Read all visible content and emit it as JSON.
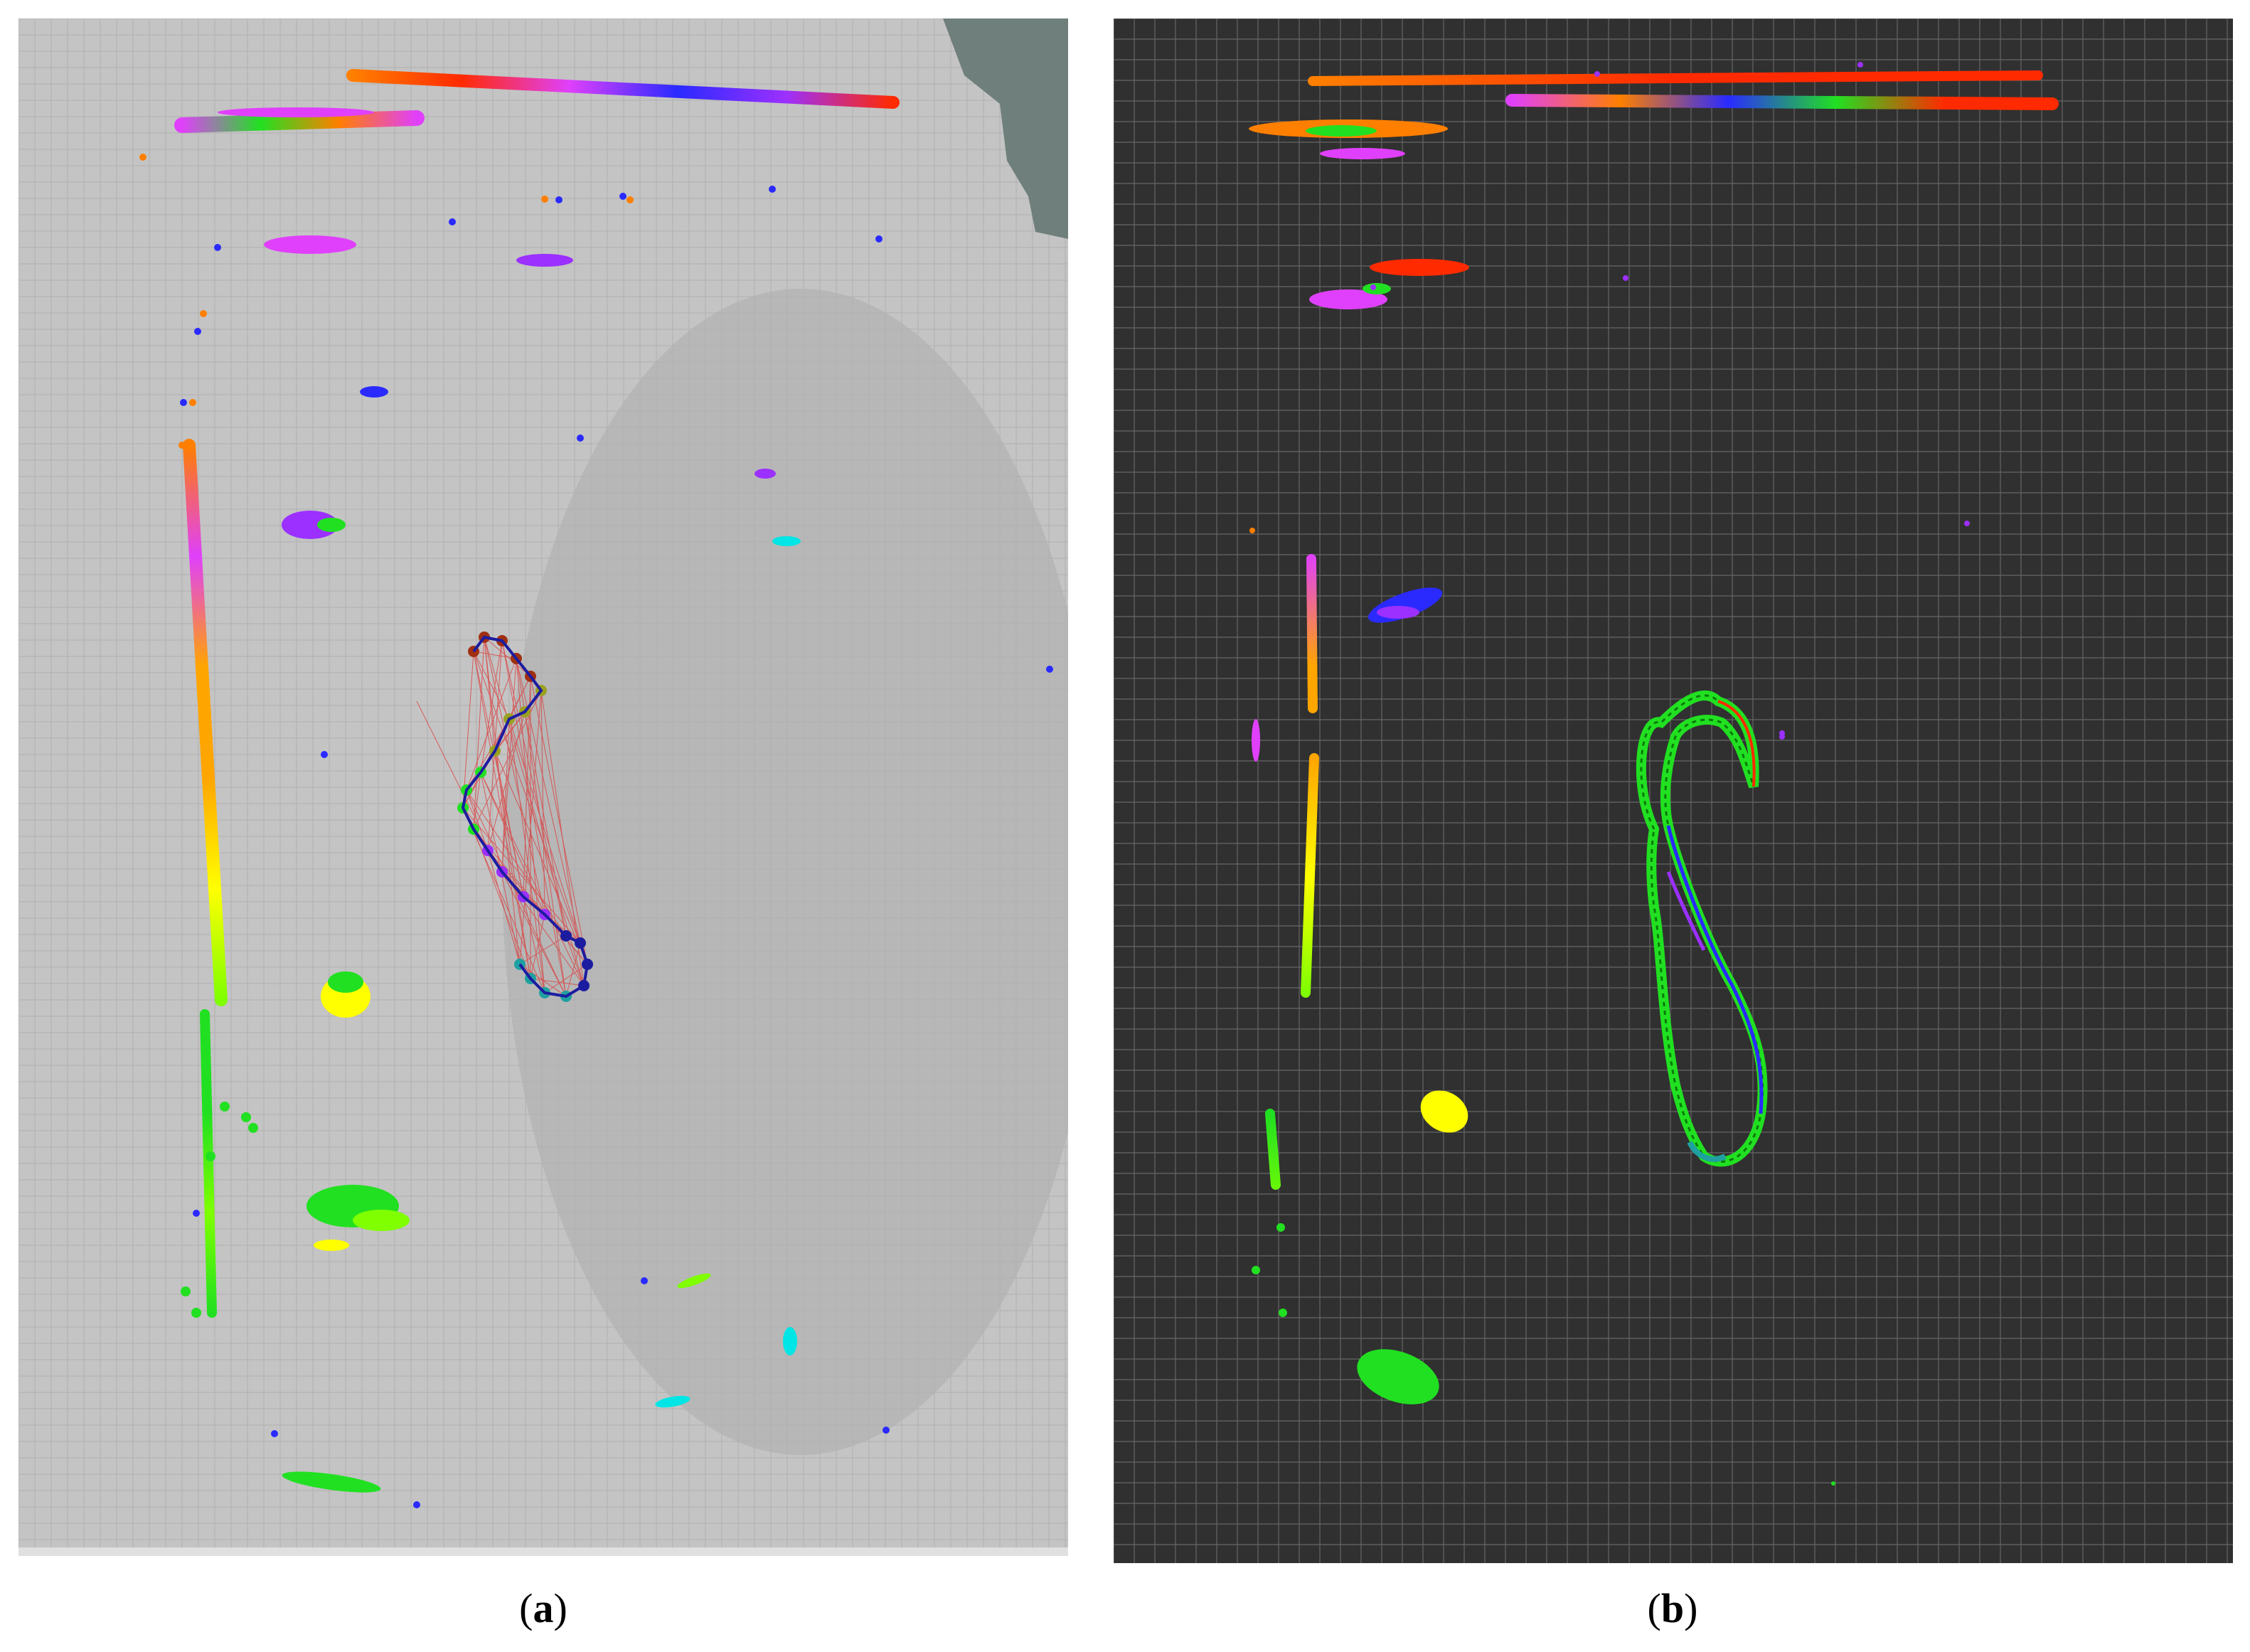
{
  "panels": [
    {
      "id": "a",
      "caption": {
        "open": "(",
        "letter": "a",
        "close": ")"
      },
      "background": "#c4c4c4",
      "grid_color": "#b0b0b0",
      "corner_fill": "#6f7f7c"
    },
    {
      "id": "b",
      "caption": {
        "open": "(",
        "letter": "b",
        "close": ")"
      },
      "background": "#303030",
      "grid_color": "#666666"
    }
  ],
  "colors": {
    "orange": "#ff7f00",
    "red": "#ff2a00",
    "magenta": "#e040fb",
    "purple": "#9b30ff",
    "blue": "#2a2aff",
    "green": "#21e021",
    "lime": "#7fff00",
    "yellow": "#ffff00",
    "amber": "#ffa500",
    "cyan": "#00e5e5",
    "teal": "#1fa0a0",
    "navy": "#1c1ca0",
    "brown": "#a03010",
    "olive": "#9aa020",
    "trajectory_edges": "#e03030"
  }
}
